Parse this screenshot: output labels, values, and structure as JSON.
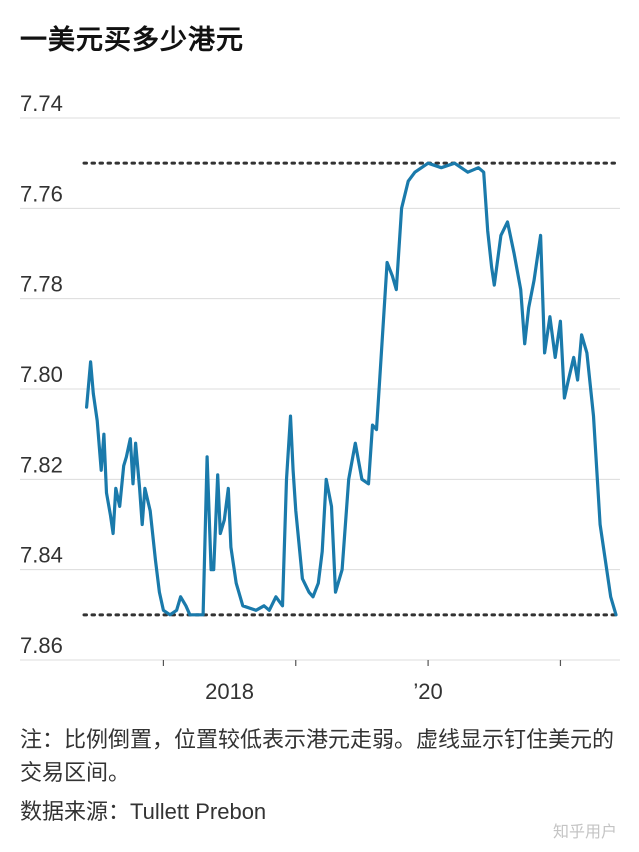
{
  "chart_data": {
    "type": "line",
    "title": "一美元买多少港元",
    "y_axis": {
      "reversed": true,
      "ylim": [
        7.74,
        7.86
      ],
      "ticks": [
        7.74,
        7.76,
        7.78,
        7.8,
        7.82,
        7.84,
        7.86
      ],
      "tick_labels": [
        "7.74",
        "7.76",
        "7.78",
        "7.80",
        "7.82",
        "7.84",
        "7.86"
      ]
    },
    "x_axis": {
      "xlim": [
        2017.4,
        2021.45
      ],
      "ticks": [
        2018,
        2019,
        2020,
        2021
      ],
      "tick_labels": [
        {
          "x": 2018.5,
          "label": "2018"
        },
        {
          "x": 2020.0,
          "label": "’20"
        }
      ]
    },
    "reference_lines": [
      {
        "y": 7.75,
        "style": "dotted"
      },
      {
        "y": 7.85,
        "style": "dotted"
      }
    ],
    "grid": true,
    "colors": {
      "line": "#1a7aab",
      "grid": "#dcdcdc",
      "reference": "#333333"
    },
    "series": [
      {
        "points": [
          [
            2017.42,
            7.804
          ],
          [
            2017.45,
            7.794
          ],
          [
            2017.47,
            7.801
          ],
          [
            2017.5,
            7.807
          ],
          [
            2017.53,
            7.818
          ],
          [
            2017.55,
            7.81
          ],
          [
            2017.57,
            7.823
          ],
          [
            2017.6,
            7.828
          ],
          [
            2017.62,
            7.832
          ],
          [
            2017.64,
            7.822
          ],
          [
            2017.67,
            7.826
          ],
          [
            2017.7,
            7.817
          ],
          [
            2017.72,
            7.815
          ],
          [
            2017.75,
            7.811
          ],
          [
            2017.77,
            7.821
          ],
          [
            2017.79,
            7.812
          ],
          [
            2017.82,
            7.822
          ],
          [
            2017.84,
            7.83
          ],
          [
            2017.86,
            7.822
          ],
          [
            2017.9,
            7.827
          ],
          [
            2017.94,
            7.838
          ],
          [
            2017.97,
            7.845
          ],
          [
            2018.0,
            7.849
          ],
          [
            2018.05,
            7.85
          ],
          [
            2018.1,
            7.849
          ],
          [
            2018.13,
            7.846
          ],
          [
            2018.17,
            7.848
          ],
          [
            2018.2,
            7.85
          ],
          [
            2018.25,
            7.85
          ],
          [
            2018.3,
            7.85
          ],
          [
            2018.33,
            7.815
          ],
          [
            2018.36,
            7.84
          ],
          [
            2018.38,
            7.84
          ],
          [
            2018.41,
            7.819
          ],
          [
            2018.43,
            7.832
          ],
          [
            2018.46,
            7.829
          ],
          [
            2018.49,
            7.822
          ],
          [
            2018.51,
            7.835
          ],
          [
            2018.55,
            7.843
          ],
          [
            2018.6,
            7.848
          ],
          [
            2018.7,
            7.849
          ],
          [
            2018.76,
            7.848
          ],
          [
            2018.8,
            7.849
          ],
          [
            2018.85,
            7.846
          ],
          [
            2018.9,
            7.848
          ],
          [
            2018.93,
            7.82
          ],
          [
            2018.96,
            7.806
          ],
          [
            2018.98,
            7.818
          ],
          [
            2019.0,
            7.827
          ],
          [
            2019.05,
            7.842
          ],
          [
            2019.1,
            7.845
          ],
          [
            2019.13,
            7.846
          ],
          [
            2019.17,
            7.843
          ],
          [
            2019.2,
            7.836
          ],
          [
            2019.23,
            7.82
          ],
          [
            2019.27,
            7.826
          ],
          [
            2019.3,
            7.845
          ],
          [
            2019.35,
            7.84
          ],
          [
            2019.4,
            7.82
          ],
          [
            2019.45,
            7.812
          ],
          [
            2019.5,
            7.82
          ],
          [
            2019.55,
            7.821
          ],
          [
            2019.58,
            7.808
          ],
          [
            2019.61,
            7.809
          ],
          [
            2019.63,
            7.8
          ],
          [
            2019.66,
            7.786
          ],
          [
            2019.69,
            7.772
          ],
          [
            2019.73,
            7.775
          ],
          [
            2019.76,
            7.778
          ],
          [
            2019.8,
            7.76
          ],
          [
            2019.85,
            7.754
          ],
          [
            2019.9,
            7.752
          ],
          [
            2019.95,
            7.751
          ],
          [
            2020.0,
            7.75
          ],
          [
            2020.1,
            7.751
          ],
          [
            2020.2,
            7.75
          ],
          [
            2020.3,
            7.752
          ],
          [
            2020.38,
            7.751
          ],
          [
            2020.42,
            7.752
          ],
          [
            2020.45,
            7.765
          ],
          [
            2020.48,
            7.773
          ],
          [
            2020.5,
            7.777
          ],
          [
            2020.55,
            7.766
          ],
          [
            2020.6,
            7.763
          ],
          [
            2020.65,
            7.77
          ],
          [
            2020.7,
            7.778
          ],
          [
            2020.73,
            7.79
          ],
          [
            2020.76,
            7.782
          ],
          [
            2020.8,
            7.776
          ],
          [
            2020.85,
            7.766
          ],
          [
            2020.88,
            7.792
          ],
          [
            2020.92,
            7.784
          ],
          [
            2020.96,
            7.793
          ],
          [
            2021.0,
            7.785
          ],
          [
            2021.03,
            7.802
          ],
          [
            2021.06,
            7.798
          ],
          [
            2021.1,
            7.793
          ],
          [
            2021.13,
            7.798
          ],
          [
            2021.16,
            7.788
          ],
          [
            2021.2,
            7.792
          ],
          [
            2021.25,
            7.806
          ],
          [
            2021.3,
            7.83
          ],
          [
            2021.34,
            7.838
          ],
          [
            2021.38,
            7.846
          ],
          [
            2021.42,
            7.85
          ]
        ]
      }
    ]
  },
  "footer": {
    "note": "注：比例倒置，位置较低表示港元走弱。虚线显示钉住美元的交易区间。",
    "source_label": "数据来源：",
    "source_name": "Tullett Prebon"
  },
  "watermark": "知乎用户"
}
